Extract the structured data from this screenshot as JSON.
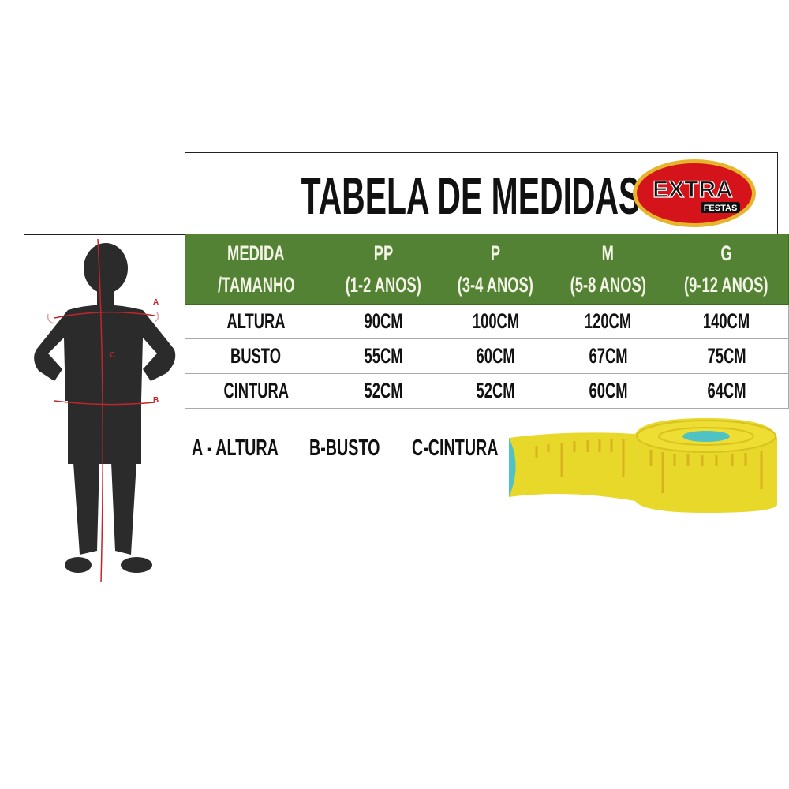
{
  "title": "TABELA DE MEDIDAS",
  "logo": {
    "text": "EXTRA",
    "subtext": "FESTAS",
    "colors": {
      "red": "#d4141a",
      "yellow": "#f4e20c",
      "gold": "#e7b52b"
    }
  },
  "table": {
    "header_color": "#548235",
    "columns": [
      {
        "line1": "MEDIDA",
        "line2": "/TAMANHO"
      },
      {
        "line1": "PP",
        "line2": "(1-2 ANOS)"
      },
      {
        "line1": "P",
        "line2": "(3-4 ANOS)"
      },
      {
        "line1": "M",
        "line2": "(5-8 ANOS)"
      },
      {
        "line1": "G",
        "line2": "(9-12 ANOS)"
      }
    ],
    "rows": [
      [
        "ALTURA",
        "90CM",
        "100CM",
        "120CM",
        "140CM"
      ],
      [
        "BUSTO",
        "55CM",
        "60CM",
        "67CM",
        "75CM"
      ],
      [
        "CINTURA",
        "52CM",
        "52CM",
        "60CM",
        "64CM"
      ]
    ]
  },
  "figure": {
    "markers": [
      "A",
      "B",
      "C"
    ],
    "line_color": "#c0262c"
  },
  "legend": [
    "A - ALTURA",
    "B-BUSTO",
    "C-CINTURA"
  ]
}
